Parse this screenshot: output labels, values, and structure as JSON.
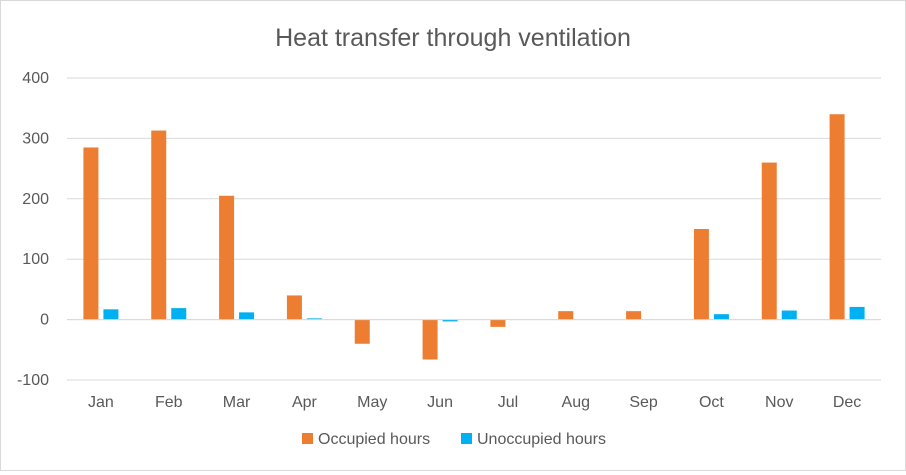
{
  "chart_data": {
    "type": "bar",
    "title": "Heat transfer through ventilation",
    "xlabel": "",
    "ylabel": "",
    "categories": [
      "Jan",
      "Feb",
      "Mar",
      "Apr",
      "May",
      "Jun",
      "Jul",
      "Aug",
      "Sep",
      "Oct",
      "Nov",
      "Dec"
    ],
    "series": [
      {
        "name": "Occupied hours",
        "color": "#ED7D31",
        "values": [
          285,
          313,
          205,
          40,
          -40,
          -66,
          -12,
          14,
          14,
          150,
          260,
          340
        ]
      },
      {
        "name": "Unoccupied hours",
        "color": "#00B0F0",
        "values": [
          17,
          19,
          12,
          2,
          0,
          -3,
          0,
          0,
          0,
          9,
          15,
          21
        ]
      }
    ],
    "ylim": [
      -100,
      400
    ],
    "yticks": [
      "-100",
      "0",
      "100",
      "200",
      "300",
      "400"
    ],
    "grid": true,
    "legend_position": "bottom"
  }
}
